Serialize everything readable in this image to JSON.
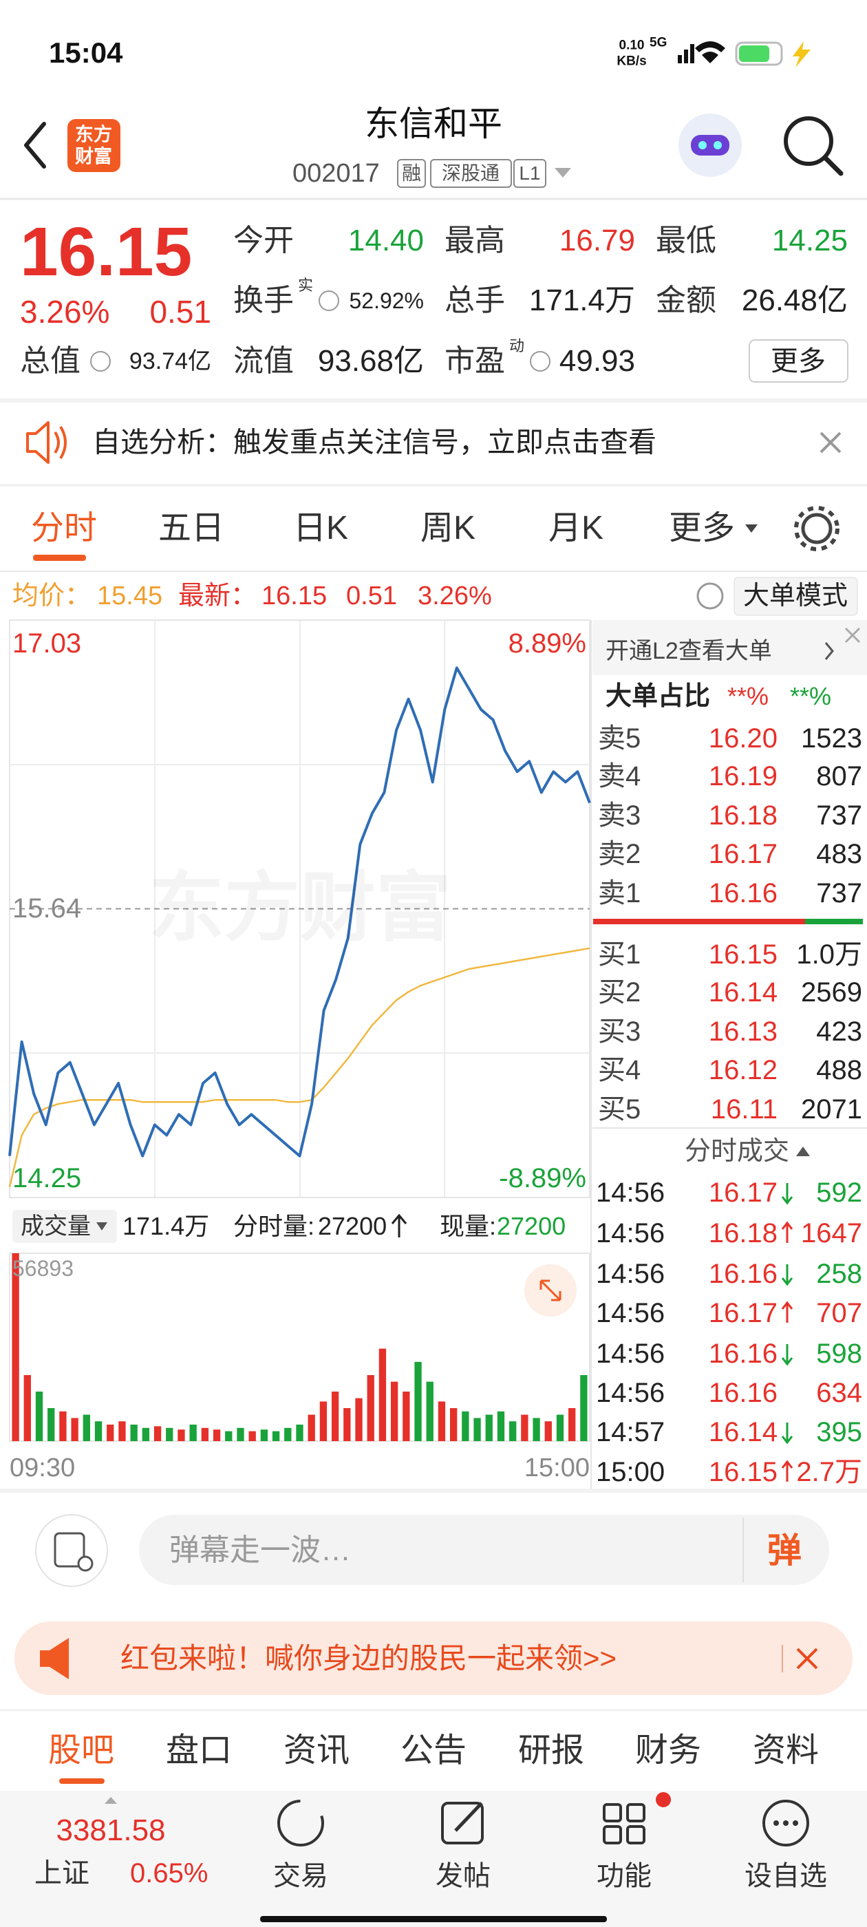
{
  "status_bar": {
    "time": "15:04",
    "net_speed_value": "0.10",
    "net_speed_unit": "KB/s",
    "network": "5G"
  },
  "header": {
    "logo": [
      "东方",
      "财富"
    ],
    "title": "东信和平",
    "code": "002017",
    "tags": [
      "融",
      "深股通",
      "L1"
    ]
  },
  "quote": {
    "price": "16.15",
    "change_pct": "3.26%",
    "change": "0.51",
    "fields": [
      {
        "label": "今开",
        "value": "14.40"
      },
      {
        "label": "最高",
        "value": "16.79"
      },
      {
        "label": "最低",
        "value": "14.25"
      },
      {
        "label": "换手",
        "sup": "实",
        "value": "52.92%"
      },
      {
        "label": "总手",
        "value": "171.4万"
      },
      {
        "label": "金额",
        "value": "26.48亿"
      },
      {
        "label": "总值",
        "value": "93.74亿"
      },
      {
        "label": "流值",
        "value": "93.68亿"
      },
      {
        "label": "市盈",
        "sup": "动",
        "value": "49.93"
      }
    ],
    "more": "更多"
  },
  "notice": "自选分析：触发重点关注信号，立即点击查看",
  "chart_tabs": [
    "分时",
    "五日",
    "日K",
    "周K",
    "月K",
    "更多"
  ],
  "info_bar": {
    "avg_label": "均价：",
    "avg": "15.45",
    "last_label": "最新：",
    "last": "16.15",
    "change": "0.51",
    "change_pct": "3.26%",
    "mode": "大单模式"
  },
  "intraday": {
    "type": "line",
    "watermark": "东方财富",
    "ylim": [
      14.25,
      17.03
    ],
    "yticks": [
      17.03,
      15.64,
      14.25
    ],
    "pct_labels": [
      "8.89%",
      "-8.89%"
    ],
    "xlabels": [
      "09:30",
      "15:00"
    ],
    "price": {
      "color": "#2f6db5",
      "values": [
        14.45,
        15.0,
        14.75,
        14.6,
        14.85,
        14.9,
        14.75,
        14.6,
        14.7,
        14.8,
        14.6,
        14.45,
        14.6,
        14.55,
        14.65,
        14.6,
        14.8,
        14.85,
        14.7,
        14.6,
        14.65,
        14.6,
        14.55,
        14.5,
        14.45,
        14.7,
        15.15,
        15.3,
        15.5,
        15.95,
        16.1,
        16.2,
        16.5,
        16.65,
        16.5,
        16.25,
        16.6,
        16.8,
        16.7,
        16.6,
        16.55,
        16.4,
        16.3,
        16.35,
        16.2,
        16.3,
        16.25,
        16.3,
        16.15
      ]
    },
    "avg": {
      "color": "#f0b840",
      "values": [
        14.3,
        14.55,
        14.65,
        14.68,
        14.7,
        14.71,
        14.72,
        14.72,
        14.72,
        14.72,
        14.72,
        14.71,
        14.71,
        14.71,
        14.71,
        14.71,
        14.71,
        14.72,
        14.72,
        14.72,
        14.72,
        14.72,
        14.72,
        14.71,
        14.71,
        14.72,
        14.78,
        14.85,
        14.92,
        15.0,
        15.08,
        15.14,
        15.2,
        15.24,
        15.27,
        15.29,
        15.31,
        15.33,
        15.35,
        15.36,
        15.37,
        15.38,
        15.39,
        15.4,
        15.41,
        15.42,
        15.43,
        15.44,
        15.45
      ]
    }
  },
  "volume": {
    "type": "bar",
    "label": "成交量",
    "total": "171.4万",
    "minute_label": "分时量:",
    "minute_value": "27200",
    "now_label": "现量:",
    "now_value": "27200",
    "ylim": [
      0,
      56893
    ],
    "yticks": [
      56893
    ],
    "up_color": "#e5312a",
    "down_color": "#1aa33a",
    "values": [
      56893,
      20000,
      15000,
      10000,
      9000,
      7000,
      8000,
      6000,
      5000,
      6000,
      5000,
      4000,
      4500,
      4000,
      3500,
      5000,
      4000,
      3500,
      3000,
      4000,
      3000,
      3500,
      3000,
      4000,
      5000,
      8000,
      12000,
      15000,
      10000,
      13000,
      20000,
      28000,
      18000,
      15000,
      24000,
      18000,
      12000,
      10000,
      9000,
      7000,
      8000,
      9000,
      6000,
      8000,
      7000,
      6000,
      8000,
      10000,
      20000
    ]
  },
  "order_book": {
    "promo": "开通L2查看大单",
    "ratio_label": "大单占比",
    "ratio_buy": "**%",
    "ratio_sell": "**%",
    "asks": [
      {
        "label": "卖5",
        "price": "16.20",
        "volume": "1523"
      },
      {
        "label": "卖4",
        "price": "16.19",
        "volume": "807"
      },
      {
        "label": "卖3",
        "price": "16.18",
        "volume": "737"
      },
      {
        "label": "卖2",
        "price": "16.17",
        "volume": "483"
      },
      {
        "label": "卖1",
        "price": "16.16",
        "volume": "737"
      }
    ],
    "bids": [
      {
        "label": "买1",
        "price": "16.15",
        "volume": "1.0万"
      },
      {
        "label": "买2",
        "price": "16.14",
        "volume": "2569"
      },
      {
        "label": "买3",
        "price": "16.13",
        "volume": "423"
      },
      {
        "label": "买4",
        "price": "16.12",
        "volume": "488"
      },
      {
        "label": "买5",
        "price": "16.11",
        "volume": "2071"
      }
    ]
  },
  "trades": {
    "title": "分时成交",
    "rows": [
      {
        "time": "14:56",
        "price": "16.17",
        "dir": "down",
        "volume": "592"
      },
      {
        "time": "14:56",
        "price": "16.18",
        "dir": "up",
        "volume": "1647"
      },
      {
        "time": "14:56",
        "price": "16.16",
        "dir": "down",
        "volume": "258"
      },
      {
        "time": "14:56",
        "price": "16.17",
        "dir": "up",
        "volume": "707"
      },
      {
        "time": "14:56",
        "price": "16.16",
        "dir": "down",
        "volume": "598"
      },
      {
        "time": "14:56",
        "price": "16.16",
        "dir": "none",
        "volume": "634"
      },
      {
        "time": "14:57",
        "price": "16.14",
        "dir": "down",
        "volume": "395"
      },
      {
        "time": "15:00",
        "price": "16.15",
        "dir": "up",
        "volume": "2.7万"
      }
    ]
  },
  "comment": {
    "placeholder": "弹幕走一波…",
    "button": "弹"
  },
  "banner": "红包来啦！喊你身边的股民一起来领>>",
  "bottom_tabs": [
    "股吧",
    "盘口",
    "资讯",
    "公告",
    "研报",
    "财务",
    "资料"
  ],
  "nav": {
    "index_value": "3381.58",
    "index_name": "上证",
    "index_change": "0.65%",
    "items": [
      "交易",
      "发帖",
      "功能",
      "设自选"
    ]
  }
}
